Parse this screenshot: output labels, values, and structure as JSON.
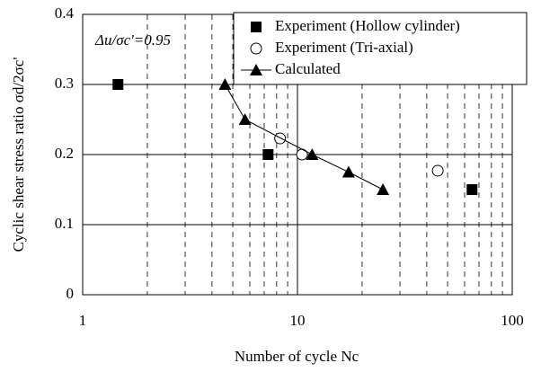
{
  "chart_data": {
    "type": "scatter",
    "log_x": true,
    "grid": true,
    "legend": "top-right",
    "annotation": "Δu/σc'=0.95",
    "xlabel": "Number of cycle  Nc",
    "ylabel": "Cyclic shear stress ratio  σd/2σc'",
    "xlim": [
      1,
      100
    ],
    "xticks": [
      1,
      10,
      100
    ],
    "ylim": [
      0,
      0.4
    ],
    "yticks": [
      0,
      0.1,
      0.2,
      0.3,
      0.4
    ],
    "series": [
      {
        "name": "Experiment (Hollow cylinder)",
        "color": "#000000",
        "marker": "square",
        "x": [
          1.46,
          7.3,
          65
        ],
        "values": [
          0.3,
          0.2,
          0.15
        ]
      },
      {
        "name": "Experiment (Tri-axial)",
        "color": "#000000",
        "marker": "circle-open",
        "x": [
          8.3,
          10.5,
          45
        ],
        "values": [
          0.223,
          0.2,
          0.177
        ]
      },
      {
        "name": "Calculated",
        "color": "#000000",
        "marker": "triangle",
        "line": true,
        "x": [
          4.6,
          5.7,
          11.7,
          17.3,
          25
        ],
        "values": [
          0.3,
          0.25,
          0.2,
          0.175,
          0.15
        ]
      }
    ]
  }
}
